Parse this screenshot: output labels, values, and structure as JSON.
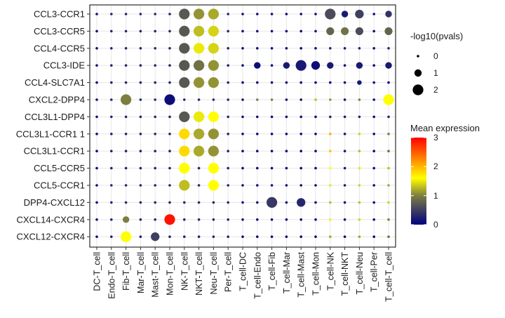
{
  "chart_data": {
    "type": "dotplot",
    "rows": [
      "CCL3-CCR1",
      "CCL3-CCR5",
      "CCL4-CCR5",
      "CCL3-IDE",
      "CCL4-SLC7A1",
      "CXCL2-DPP4",
      "CCL3L1-DPP4",
      "CCL3L1-CCR1 1",
      "CCL3L1-CCR1",
      "CCL5-CCR5",
      "CCL5-CCR1",
      "DPP4-CXCL12",
      "CXCL14-CXCR4",
      "CXCL12-CXCR4"
    ],
    "columns": [
      "DC-T_cell",
      "Endo-T_cell",
      "Fib-T_cell",
      "Mar-T_cell",
      "Mast-T_cell",
      "Mon-T_cell",
      "NK-T_cell",
      "NKT-T_cell",
      "Neu-T_cell",
      "Per-T_cell",
      "T_cell-DC",
      "T_cell-Endo",
      "T_cell-Fib",
      "T_cell-Mar",
      "T_cell-Mast",
      "T_cell-Mon",
      "T_cell-NK",
      "T_cell-NKT",
      "T_cell-Neu",
      "T_cell-Per",
      "T_cell-T_cell"
    ],
    "mean_expression": [
      [
        0.1,
        0.3,
        0.3,
        0.3,
        0.3,
        0.3,
        0.7,
        1.1,
        1.2,
        0.3,
        0.1,
        0.1,
        0.1,
        0.1,
        0.1,
        0.1,
        0.6,
        0.2,
        0.5,
        0.1,
        0.4
      ],
      [
        0.1,
        0.3,
        0.3,
        0.3,
        0.3,
        0.3,
        0.7,
        1.3,
        1.4,
        0.3,
        0.1,
        0.1,
        0.1,
        0.1,
        0.1,
        0.1,
        0.8,
        0.9,
        0.6,
        0.1,
        0.8
      ],
      [
        0.1,
        0.3,
        0.3,
        0.3,
        0.3,
        0.3,
        0.7,
        1.5,
        1.4,
        0.3,
        0.1,
        0.1,
        0.1,
        0.1,
        0.1,
        0.1,
        0.3,
        0.2,
        0.3,
        0.1,
        0.3
      ],
      [
        0.1,
        0.3,
        0.3,
        0.3,
        0.3,
        0.3,
        0.7,
        0.9,
        1.1,
        0.3,
        0.1,
        0.1,
        0.1,
        0.2,
        0.2,
        0.1,
        0.2,
        0.1,
        0.2,
        0.1,
        0.2
      ],
      [
        0.1,
        0.3,
        0.3,
        0.3,
        0.3,
        0.3,
        0.7,
        1.1,
        1.1,
        0.3,
        0.1,
        0.1,
        0.1,
        0.1,
        0.1,
        0.1,
        0.1,
        0.1,
        0.2,
        0.1,
        0.1
      ],
      [
        0.1,
        0.3,
        1.0,
        0.3,
        0.3,
        0.1,
        0.3,
        0.3,
        0.3,
        0.3,
        0.1,
        1.0,
        1.0,
        0.1,
        0.1,
        1.3,
        1.1,
        0.1,
        1.0,
        0.1,
        1.6
      ],
      [
        0.1,
        0.3,
        0.3,
        0.3,
        0.3,
        0.3,
        0.7,
        1.5,
        1.6,
        0.3,
        0.1,
        0.1,
        0.1,
        0.1,
        0.1,
        0.1,
        0.3,
        0.2,
        0.3,
        0.1,
        0.3
      ],
      [
        0.1,
        0.3,
        0.3,
        0.3,
        0.3,
        0.3,
        1.8,
        1.2,
        1.1,
        0.3,
        0.1,
        0.1,
        0.1,
        0.1,
        0.1,
        0.1,
        2.0,
        0.2,
        1.4,
        0.1,
        1.0
      ],
      [
        0.1,
        0.3,
        0.3,
        0.3,
        0.3,
        0.3,
        1.8,
        1.2,
        1.1,
        0.3,
        0.1,
        0.1,
        0.1,
        0.1,
        0.1,
        0.1,
        1.9,
        0.2,
        1.3,
        0.1,
        0.9
      ],
      [
        0.1,
        0.3,
        0.3,
        0.3,
        0.3,
        0.3,
        1.6,
        0.3,
        1.6,
        0.3,
        0.1,
        0.1,
        0.1,
        0.1,
        0.1,
        0.1,
        1.6,
        0.2,
        1.5,
        0.1,
        1.3
      ],
      [
        0.1,
        0.3,
        0.3,
        0.3,
        0.3,
        0.3,
        1.3,
        0.3,
        1.6,
        0.3,
        0.1,
        0.1,
        0.1,
        0.1,
        0.1,
        0.1,
        1.5,
        0.2,
        1.4,
        0.1,
        1.2
      ],
      [
        0.1,
        0.3,
        0.3,
        0.3,
        0.3,
        0.3,
        0.3,
        0.3,
        0.3,
        0.3,
        0.1,
        0.1,
        0.45,
        0.1,
        0.3,
        0.1,
        1.3,
        0.1,
        1.3,
        0.1,
        1.4
      ],
      [
        0.1,
        0.3,
        1.0,
        0.3,
        0.3,
        2.9,
        0.3,
        0.3,
        0.3,
        0.3,
        0.1,
        0.1,
        0.1,
        0.1,
        0.1,
        0.1,
        1.7,
        0.1,
        1.4,
        0.1,
        1.0
      ],
      [
        0.1,
        0.3,
        1.6,
        0.3,
        0.5,
        0.3,
        0.3,
        0.3,
        0.3,
        0.3,
        0.1,
        0.1,
        0.1,
        0.1,
        0.1,
        0.1,
        1.2,
        0.1,
        1.2,
        0.1,
        0.9
      ]
    ],
    "neg_log10_pvals": [
      [
        0,
        0,
        0,
        0,
        0,
        0,
        2,
        2,
        2,
        0,
        0,
        0,
        0,
        0,
        0,
        0,
        2,
        1,
        1.5,
        0,
        1
      ],
      [
        0,
        0,
        0,
        0,
        0,
        0,
        2,
        2,
        2,
        0,
        0,
        0,
        0,
        0,
        0,
        0,
        1.3,
        1.3,
        1.3,
        0,
        1.3
      ],
      [
        0,
        0,
        0,
        0,
        0,
        0,
        2,
        2,
        2,
        0,
        0,
        0,
        0,
        0,
        0,
        0,
        0,
        0,
        0,
        0,
        0
      ],
      [
        0,
        0,
        0,
        0,
        0,
        0,
        2,
        2,
        2,
        0,
        0,
        1,
        0,
        1,
        2,
        1.5,
        1,
        0,
        1,
        0,
        1
      ],
      [
        0,
        0,
        0,
        0,
        0,
        0,
        2,
        2,
        2,
        0,
        0,
        0,
        0,
        0,
        0,
        0,
        0,
        0,
        0.5,
        0,
        0
      ],
      [
        0,
        0,
        2,
        0,
        0,
        2,
        0,
        0,
        0,
        0,
        0,
        0,
        0,
        0,
        0,
        0,
        0,
        0,
        0,
        0,
        2
      ],
      [
        0,
        0,
        0,
        0,
        0,
        0,
        2,
        2,
        2,
        0,
        0,
        0,
        0,
        0,
        0,
        0,
        0,
        0,
        0,
        0,
        0
      ],
      [
        0,
        0,
        0,
        0,
        0,
        0,
        2,
        2,
        2,
        0,
        0,
        0,
        0,
        0,
        0,
        0,
        0,
        0,
        0,
        0,
        0
      ],
      [
        0,
        0,
        0,
        0,
        0,
        0,
        2,
        2,
        2,
        0,
        0,
        0,
        0,
        0,
        0,
        0,
        0,
        0,
        0,
        0,
        0
      ],
      [
        0,
        0,
        0,
        0,
        0,
        0,
        2,
        0,
        2,
        0,
        0,
        0,
        0,
        0,
        0,
        0,
        0,
        0,
        0,
        0,
        0
      ],
      [
        0,
        0,
        0,
        0,
        0,
        0,
        2,
        0,
        2,
        0,
        0,
        0,
        0,
        0,
        0,
        0,
        0,
        0,
        0,
        0,
        0
      ],
      [
        0,
        0,
        0,
        0,
        0,
        0,
        0,
        0,
        0,
        0,
        0,
        0,
        2,
        0,
        1.5,
        0,
        0,
        0,
        0,
        0,
        0
      ],
      [
        0,
        0,
        1,
        0,
        0,
        2,
        0,
        0,
        0,
        0,
        0,
        0,
        0,
        0,
        0,
        0,
        0,
        0,
        0,
        0,
        0
      ],
      [
        0,
        0,
        2,
        0,
        1.5,
        0,
        0,
        0,
        0,
        0,
        0,
        0,
        0,
        0,
        0,
        0,
        0,
        0,
        0,
        0,
        0
      ]
    ],
    "size_legend": {
      "title": "-log10(pvals)",
      "values": [
        0,
        1,
        2
      ],
      "labels": [
        "0",
        "1",
        "2"
      ]
    },
    "color_legend": {
      "title": "Mean expression",
      "range": [
        0,
        3
      ],
      "ticks": [
        0,
        1,
        2,
        3
      ],
      "tick_labels": [
        "0",
        "1",
        "2",
        "3"
      ]
    },
    "colors": {
      "low": "#000080",
      "mid": "#FFFF00",
      "high": "#FF0000",
      "grid": "#e6e6e6",
      "panel_border": "#000000"
    }
  }
}
